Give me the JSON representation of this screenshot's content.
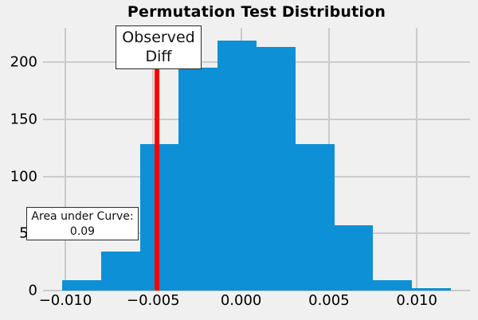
{
  "title": "Permutation Test Distribution",
  "annotations": {
    "observed": {
      "line1": "Observed",
      "line2": "Diff"
    },
    "area": {
      "line1": "Area under Curve:",
      "line2": "0.09"
    }
  },
  "chart_data": {
    "type": "bar",
    "subtype": "histogram",
    "title": "Permutation Test Distribution",
    "bin_edges": [
      -0.01018,
      -0.007968,
      -0.005756,
      -0.003544,
      -0.001332,
      0.00088,
      0.003092,
      0.005304,
      0.007516,
      0.009728,
      0.01194
    ],
    "counts": [
      9,
      34,
      128,
      195,
      219,
      213,
      128,
      57,
      9,
      2
    ],
    "observed_diff": -0.0048,
    "area_under_curve": 0.09,
    "x_ticks": [
      {
        "value": -0.01,
        "label": "−0.010"
      },
      {
        "value": -0.005,
        "label": "−0.005"
      },
      {
        "value": 0.0,
        "label": "0.000"
      },
      {
        "value": 0.005,
        "label": "0.005"
      },
      {
        "value": 0.01,
        "label": "0.010"
      }
    ],
    "y_ticks": [
      {
        "value": 0,
        "label": "0"
      },
      {
        "value": 50,
        "label": "50"
      },
      {
        "value": 100,
        "label": "100"
      },
      {
        "value": 150,
        "label": "150"
      },
      {
        "value": 200,
        "label": "200"
      }
    ],
    "xlim": [
      -0.01127,
      0.01303
    ],
    "ylim": [
      0,
      230
    ],
    "grid": true,
    "legend": false,
    "colors": {
      "bar": "#0d90d5",
      "observed_line": "#ff0000",
      "grid": "#cbcbcb",
      "background": "#f0f0f0",
      "annotation_bg": "#ffffff",
      "annotation_border": "#2a2a2a"
    }
  }
}
